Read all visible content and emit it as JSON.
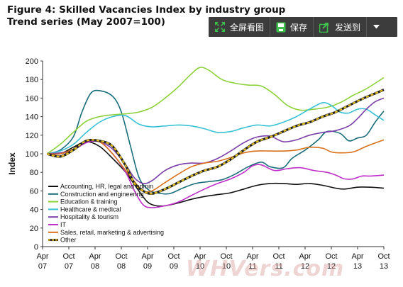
{
  "figure": {
    "title_line1": "Figure 4: Skilled Vacancies Index by industry group",
    "title_line2": "Trend series (May 2007=100)"
  },
  "toolbar": {
    "fullscreen_label": "全屏看图",
    "save_label": "保存",
    "send_label": "发送到",
    "colors": {
      "background": "#3c3c3c",
      "icon_green": "#3cc04a"
    }
  },
  "watermark": {
    "text": "WHVers.com"
  },
  "chart_data": {
    "type": "line",
    "title": "Figure 4: Skilled Vacancies Index by industry group",
    "subtitle": "Trend series (May 2007=100)",
    "ylabel": "Index",
    "xlabel": "",
    "ylim": [
      0,
      200
    ],
    "yticks": [
      0,
      20,
      40,
      60,
      80,
      100,
      120,
      140,
      160,
      180,
      200
    ],
    "xlim": [
      0,
      78
    ],
    "xticks": [
      {
        "x": 0,
        "month": "Apr",
        "year": "07"
      },
      {
        "x": 6,
        "month": "Oct",
        "year": "07"
      },
      {
        "x": 12,
        "month": "Apr",
        "year": "08"
      },
      {
        "x": 18,
        "month": "Oct",
        "year": "08"
      },
      {
        "x": 24,
        "month": "Apr",
        "year": "09"
      },
      {
        "x": 30,
        "month": "Oct",
        "year": "09"
      },
      {
        "x": 36,
        "month": "Apr",
        "year": "10"
      },
      {
        "x": 42,
        "month": "Oct",
        "year": "10"
      },
      {
        "x": 48,
        "month": "Apr",
        "year": "11"
      },
      {
        "x": 54,
        "month": "Oct",
        "year": "11"
      },
      {
        "x": 60,
        "month": "Apr",
        "year": "12"
      },
      {
        "x": 66,
        "month": "Oct",
        "year": "12"
      },
      {
        "x": 72,
        "month": "Apr",
        "year": "13"
      },
      {
        "x": 78,
        "month": "Oct",
        "year": "13"
      }
    ],
    "grid": false,
    "legend_position": "bottom-left",
    "series": [
      {
        "name": "Accounting, HR, legal and admin",
        "color": "#111111",
        "dashed": false,
        "points": [
          [
            1,
            100
          ],
          [
            4,
            100
          ],
          [
            7,
            107
          ],
          [
            10,
            113
          ],
          [
            13,
            108
          ],
          [
            16,
            95
          ],
          [
            19,
            80
          ],
          [
            22,
            60
          ],
          [
            24,
            48
          ],
          [
            26,
            44
          ],
          [
            28,
            44
          ],
          [
            31,
            47
          ],
          [
            34,
            51
          ],
          [
            37,
            54
          ],
          [
            40,
            56
          ],
          [
            43,
            58
          ],
          [
            46,
            62
          ],
          [
            49,
            66
          ],
          [
            52,
            68
          ],
          [
            55,
            68
          ],
          [
            58,
            67
          ],
          [
            61,
            68
          ],
          [
            64,
            66
          ],
          [
            67,
            63
          ],
          [
            69,
            62
          ],
          [
            72,
            64
          ],
          [
            75,
            64
          ],
          [
            78,
            63
          ]
        ]
      },
      {
        "name": "Construction and engineering",
        "color": "#1a6e7a",
        "dashed": false,
        "points": [
          [
            1,
            100
          ],
          [
            4,
            104
          ],
          [
            7,
            118
          ],
          [
            9,
            145
          ],
          [
            11,
            165
          ],
          [
            13,
            168
          ],
          [
            16,
            162
          ],
          [
            18,
            145
          ],
          [
            20,
            110
          ],
          [
            22,
            75
          ],
          [
            24,
            62
          ],
          [
            26,
            58
          ],
          [
            29,
            57
          ],
          [
            32,
            63
          ],
          [
            35,
            68
          ],
          [
            38,
            70
          ],
          [
            41,
            72
          ],
          [
            44,
            78
          ],
          [
            47,
            86
          ],
          [
            50,
            91
          ],
          [
            52,
            86
          ],
          [
            55,
            85
          ],
          [
            57,
            95
          ],
          [
            60,
            104
          ],
          [
            63,
            115
          ],
          [
            65,
            124
          ],
          [
            68,
            122
          ],
          [
            70,
            114
          ],
          [
            72,
            117
          ],
          [
            74,
            120
          ],
          [
            76,
            134
          ],
          [
            78,
            146
          ]
        ]
      },
      {
        "name": "Education & training",
        "color": "#8ed13a",
        "dashed": false,
        "points": [
          [
            1,
            100
          ],
          [
            4,
            110
          ],
          [
            7,
            123
          ],
          [
            10,
            135
          ],
          [
            13,
            140
          ],
          [
            16,
            142
          ],
          [
            19,
            143
          ],
          [
            22,
            145
          ],
          [
            25,
            150
          ],
          [
            28,
            160
          ],
          [
            31,
            172
          ],
          [
            34,
            186
          ],
          [
            36,
            193
          ],
          [
            38,
            190
          ],
          [
            41,
            180
          ],
          [
            44,
            176
          ],
          [
            47,
            174
          ],
          [
            50,
            173
          ],
          [
            53,
            164
          ],
          [
            56,
            152
          ],
          [
            59,
            147
          ],
          [
            62,
            148
          ],
          [
            65,
            150
          ],
          [
            68,
            155
          ],
          [
            71,
            163
          ],
          [
            74,
            170
          ],
          [
            78,
            182
          ]
        ]
      },
      {
        "name": "Healthcare & medical",
        "color": "#36c2d4",
        "dashed": false,
        "points": [
          [
            1,
            100
          ],
          [
            4,
            103
          ],
          [
            7,
            110
          ],
          [
            10,
            123
          ],
          [
            13,
            134
          ],
          [
            16,
            140
          ],
          [
            19,
            141
          ],
          [
            22,
            132
          ],
          [
            25,
            129
          ],
          [
            28,
            130
          ],
          [
            31,
            131
          ],
          [
            34,
            130
          ],
          [
            37,
            127
          ],
          [
            40,
            123
          ],
          [
            43,
            124
          ],
          [
            46,
            128
          ],
          [
            49,
            131
          ],
          [
            52,
            130
          ],
          [
            55,
            134
          ],
          [
            58,
            140
          ],
          [
            61,
            148
          ],
          [
            64,
            155
          ],
          [
            66,
            152
          ],
          [
            68,
            145
          ],
          [
            70,
            144
          ],
          [
            72,
            148
          ],
          [
            74,
            148
          ],
          [
            76,
            142
          ],
          [
            78,
            136
          ]
        ]
      },
      {
        "name": "Hospitality & tourism",
        "color": "#7b3fa8",
        "dashed": false,
        "points": [
          [
            1,
            100
          ],
          [
            4,
            101
          ],
          [
            7,
            104
          ],
          [
            10,
            112
          ],
          [
            13,
            113
          ],
          [
            16,
            105
          ],
          [
            19,
            88
          ],
          [
            21,
            74
          ],
          [
            23,
            68
          ],
          [
            25,
            71
          ],
          [
            28,
            82
          ],
          [
            31,
            88
          ],
          [
            34,
            90
          ],
          [
            37,
            90
          ],
          [
            40,
            95
          ],
          [
            43,
            103
          ],
          [
            46,
            112
          ],
          [
            49,
            118
          ],
          [
            52,
            119
          ],
          [
            55,
            113
          ],
          [
            58,
            115
          ],
          [
            61,
            120
          ],
          [
            64,
            123
          ],
          [
            67,
            125
          ],
          [
            70,
            130
          ],
          [
            72,
            138
          ],
          [
            74,
            148
          ],
          [
            76,
            156
          ],
          [
            78,
            160
          ]
        ]
      },
      {
        "name": "IT",
        "color": "#c02ec9",
        "dashed": false,
        "points": [
          [
            1,
            100
          ],
          [
            4,
            100
          ],
          [
            7,
            104
          ],
          [
            10,
            112
          ],
          [
            13,
            113
          ],
          [
            16,
            100
          ],
          [
            19,
            80
          ],
          [
            21,
            60
          ],
          [
            23,
            45
          ],
          [
            25,
            42
          ],
          [
            28,
            44
          ],
          [
            31,
            48
          ],
          [
            34,
            55
          ],
          [
            37,
            62
          ],
          [
            40,
            68
          ],
          [
            43,
            73
          ],
          [
            46,
            80
          ],
          [
            48,
            87
          ],
          [
            50,
            88
          ],
          [
            53,
            82
          ],
          [
            56,
            84
          ],
          [
            59,
            85
          ],
          [
            62,
            82
          ],
          [
            65,
            80
          ],
          [
            67,
            77
          ],
          [
            69,
            73
          ],
          [
            71,
            73
          ],
          [
            73,
            76
          ],
          [
            75,
            76
          ],
          [
            78,
            77
          ]
        ]
      },
      {
        "name": "Sales, retail, marketing & advertising",
        "color": "#d9701a",
        "dashed": false,
        "points": [
          [
            1,
            100
          ],
          [
            4,
            100
          ],
          [
            7,
            105
          ],
          [
            10,
            114
          ],
          [
            13,
            113
          ],
          [
            16,
            100
          ],
          [
            19,
            82
          ],
          [
            21,
            70
          ],
          [
            23,
            60
          ],
          [
            25,
            60
          ],
          [
            28,
            69
          ],
          [
            31,
            78
          ],
          [
            34,
            86
          ],
          [
            37,
            90
          ],
          [
            40,
            92
          ],
          [
            43,
            96
          ],
          [
            46,
            101
          ],
          [
            49,
            103
          ],
          [
            52,
            103
          ],
          [
            55,
            103
          ],
          [
            58,
            104
          ],
          [
            61,
            107
          ],
          [
            64,
            106
          ],
          [
            66,
            102
          ],
          [
            68,
            101
          ],
          [
            71,
            102
          ],
          [
            74,
            108
          ],
          [
            78,
            115
          ]
        ]
      },
      {
        "name": "Other",
        "color": "#e6c21a",
        "dashed": true,
        "points": [
          [
            1,
            100
          ],
          [
            4,
            97
          ],
          [
            7,
            104
          ],
          [
            10,
            114
          ],
          [
            13,
            114
          ],
          [
            16,
            108
          ],
          [
            19,
            87
          ],
          [
            21,
            68
          ],
          [
            23,
            60
          ],
          [
            25,
            57
          ],
          [
            28,
            62
          ],
          [
            31,
            69
          ],
          [
            34,
            76
          ],
          [
            37,
            82
          ],
          [
            40,
            86
          ],
          [
            43,
            94
          ],
          [
            46,
            104
          ],
          [
            49,
            113
          ],
          [
            52,
            118
          ],
          [
            55,
            124
          ],
          [
            58,
            130
          ],
          [
            61,
            134
          ],
          [
            64,
            140
          ],
          [
            67,
            145
          ],
          [
            70,
            152
          ],
          [
            73,
            159
          ],
          [
            76,
            165
          ],
          [
            78,
            169
          ]
        ]
      }
    ]
  }
}
